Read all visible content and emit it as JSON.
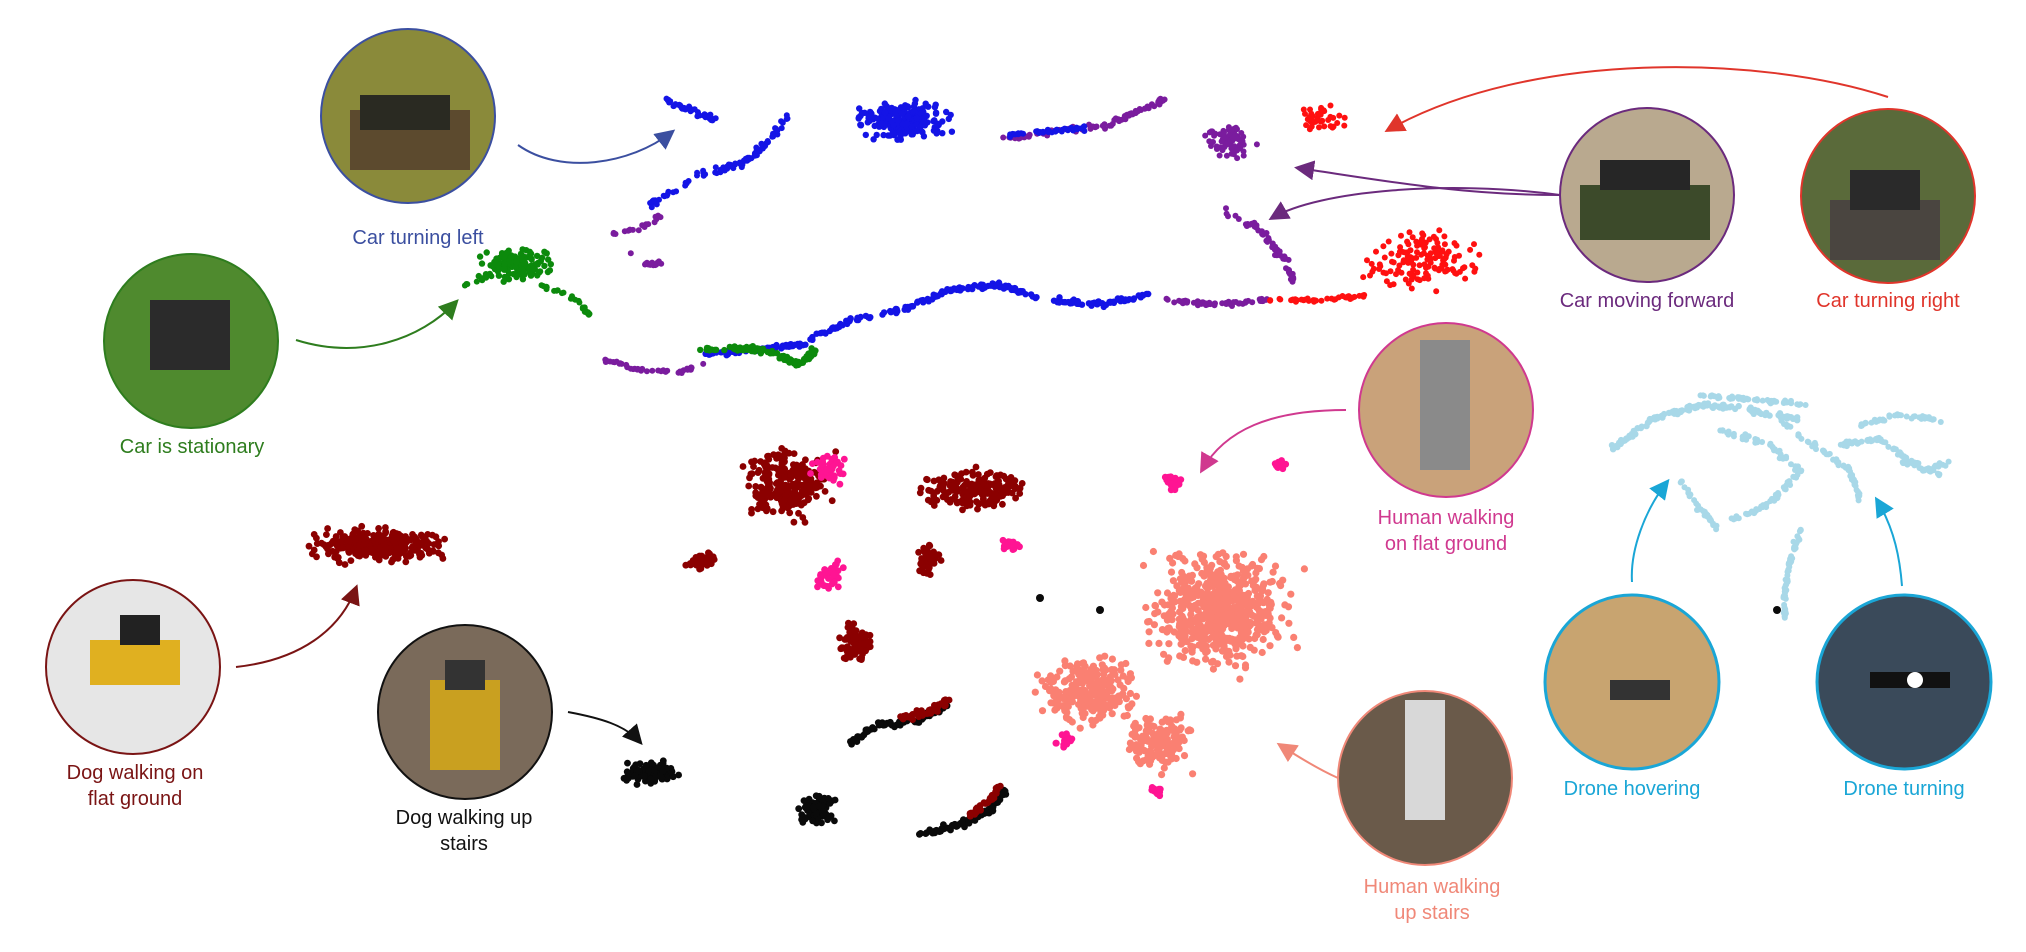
{
  "categories": [
    {
      "key": "car_left",
      "label": "Car turning left",
      "color": "#3b4fa0"
    },
    {
      "key": "car_stationary",
      "label": "Car is stationary",
      "color": "#2e7d1e"
    },
    {
      "key": "car_forward",
      "label": "Car moving forward",
      "color": "#6b2a7d"
    },
    {
      "key": "car_right",
      "label": "Car turning right",
      "color": "#e0352b"
    },
    {
      "key": "human_flat",
      "label": "Human walking\non flat ground",
      "color": "#d0398f"
    },
    {
      "key": "human_stairs",
      "label": "Human walking\nup stairs",
      "color": "#f08878"
    },
    {
      "key": "dog_flat",
      "label": "Dog walking on\nflat ground",
      "color": "#7a1414"
    },
    {
      "key": "dog_stairs",
      "label": "Dog walking up\nstairs",
      "color": "#111111"
    },
    {
      "key": "drone_hover",
      "label": "Drone hovering",
      "color": "#1aa6d6"
    },
    {
      "key": "drone_turn",
      "label": "Drone turning",
      "color": "#1aa6d6"
    }
  ],
  "cluster_colors": {
    "blue": "#1414e6",
    "green": "#0c8a0c",
    "purple": "#7a1c9e",
    "red": "#ff1010",
    "maroon": "#8b0000",
    "pink": "#ff1493",
    "salmon": "#fa8072",
    "black": "#0a0a0a",
    "lightblue": "#a8d8e8"
  }
}
